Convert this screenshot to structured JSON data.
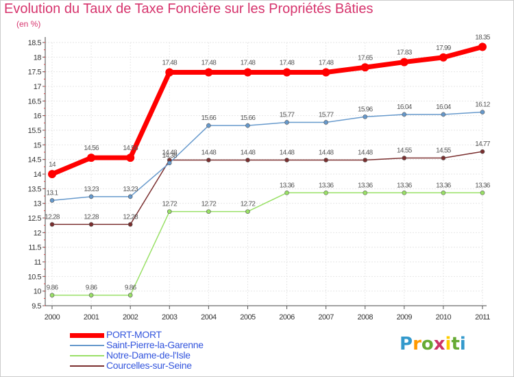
{
  "chart_data": {
    "type": "line",
    "title": "Evolution du Taux de Taxe Foncière sur les Propriétés Bâties",
    "ylabel": "(en %)",
    "xlabel": "",
    "ylim": [
      9.5,
      18.5
    ],
    "yticks": [
      "9.5",
      "10",
      "10.5",
      "11",
      "11.5",
      "12",
      "12.5",
      "13",
      "13.5",
      "14",
      "14.5",
      "15",
      "15.5",
      "16",
      "16.5",
      "17",
      "17.5",
      "18",
      "18.5"
    ],
    "categories": [
      "2000",
      "2001",
      "2002",
      "2003",
      "2004",
      "2005",
      "2006",
      "2007",
      "2008",
      "2009",
      "2010",
      "2011"
    ],
    "series": [
      {
        "name": "PORT-MORT",
        "color": "#ff0000",
        "values": [
          14,
          14.56,
          14.56,
          17.48,
          17.48,
          17.48,
          17.48,
          17.48,
          17.65,
          17.83,
          17.99,
          18.35
        ],
        "labels": [
          "14",
          "14.56",
          "14.56",
          "17.48",
          "17.48",
          "17.48",
          "17.48",
          "17.48",
          "17.65",
          "17.83",
          "17.99",
          "18.35"
        ]
      },
      {
        "name": "Saint-Pierre-la-Garenne",
        "color": "#6699cc",
        "values": [
          13.1,
          13.23,
          13.23,
          14.38,
          15.66,
          15.66,
          15.77,
          15.77,
          15.96,
          16.04,
          16.04,
          16.12
        ],
        "labels": [
          "13.1",
          "13.23",
          "13.23",
          "14.38",
          "15.66",
          "15.66",
          "15.77",
          "15.77",
          "15.96",
          "16.04",
          "16.04",
          "16.12"
        ]
      },
      {
        "name": "Notre-Dame-de-l'Isle",
        "color": "#99e066",
        "values": [
          9.86,
          9.86,
          9.86,
          12.72,
          12.72,
          12.72,
          13.36,
          13.36,
          13.36,
          13.36,
          13.36,
          13.36
        ],
        "labels": [
          "9.86",
          "9.86",
          "9.86",
          "12.72",
          "12.72",
          "12.72",
          "13.36",
          "13.36",
          "13.36",
          "13.36",
          "13.36",
          "13.36"
        ]
      },
      {
        "name": "Courcelles-sur-Seine",
        "color": "#7a2e2e",
        "values": [
          12.28,
          12.28,
          12.28,
          14.48,
          14.48,
          14.48,
          14.48,
          14.48,
          14.48,
          14.55,
          14.55,
          14.77
        ],
        "labels": [
          "12.28",
          "12.28",
          "12.28",
          "14.48",
          "14.48",
          "14.48",
          "14.48",
          "14.48",
          "14.48",
          "14.55",
          "14.55",
          "14.77"
        ]
      }
    ],
    "legend_position": "bottom-left"
  },
  "legend": {
    "items": [
      {
        "label": "PORT-MORT",
        "color": "#ff0000",
        "text_color": "#3355dd"
      },
      {
        "label": "Saint-Pierre-la-Garenne",
        "color": "#6699cc",
        "text_color": "#3355dd"
      },
      {
        "label": "Notre-Dame-de-l'Isle",
        "color": "#99e066",
        "text_color": "#3355dd"
      },
      {
        "label": "Courcelles-sur-Seine",
        "color": "#7a2e2e",
        "text_color": "#3355dd"
      }
    ]
  },
  "brand": {
    "letters": [
      "P",
      "r",
      "o",
      "x",
      "i",
      "t",
      "i"
    ],
    "colors": [
      "#3399cc",
      "#ff9900",
      "#66aa33",
      "#cc3366",
      "#ffcc00",
      "#66aa33",
      "#3399cc"
    ]
  }
}
